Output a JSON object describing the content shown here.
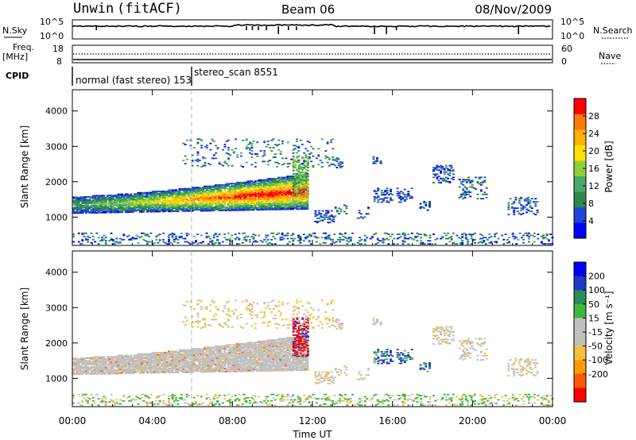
{
  "header": {
    "radar": "Unwin",
    "mode": "(fitACF)",
    "beam": "Beam 06",
    "date": "08/Nov/2009"
  },
  "top_panels": {
    "nsky_label": "N.Sky",
    "nsearch_label": "N.Search",
    "nsky_ticks": [
      "10^5",
      "10^0"
    ],
    "freq_label": "Freq.",
    "freq_unit": "[MHz]",
    "freq_ticks": [
      "18",
      "8"
    ],
    "nave_label": "Nave",
    "nave_ticks": [
      "60",
      "0"
    ],
    "cpid_label": "CPID",
    "cpid_entries": [
      {
        "name": "normal (fast stereo) 153",
        "start_hour": 0
      },
      {
        "name": "stereo_scan 8551",
        "start_hour": 6
      }
    ]
  },
  "colors": {
    "power": [
      "#0000ff",
      "#1e46d8",
      "#2f8a4a",
      "#4aa86a",
      "#8fcf3a",
      "#ffe000",
      "#ffb000",
      "#ff7a00",
      "#ff0000"
    ],
    "velocity": [
      "#ff0000",
      "#ff5a00",
      "#ff9a00",
      "#f2c040",
      "#c0c0c0",
      "#c0c0c0",
      "#3cb83c",
      "#2a8c5a",
      "#1e3cc8",
      "#0000ff"
    ],
    "noise_purple": "#9966cc"
  },
  "chart_data": [
    {
      "type": "heatmap",
      "ylabel": "Slant Range [km]",
      "colorbar_label": "Power [dB]",
      "colorbar_ticks": [
        4,
        8,
        12,
        16,
        20,
        24,
        28
      ],
      "colorbar_range": [
        0,
        32
      ],
      "ylim": [
        200,
        4600
      ],
      "yticks": [
        1000,
        2000,
        3000,
        4000
      ],
      "xlim": [
        0,
        24
      ],
      "features": [
        {
          "name": "main_band",
          "x_range": [
            0,
            11.7
          ],
          "range_km_start": [
            1150,
            1500
          ],
          "range_km_end": [
            1350,
            2150
          ],
          "peak_power_db": 30
        },
        {
          "name": "upper_patch",
          "x_range": [
            5.5,
            13
          ],
          "range_km": [
            2400,
            3200
          ]
        },
        {
          "name": "scattered_echoes",
          "x_range": [
            12,
            24
          ],
          "range_km": [
            900,
            2700
          ]
        },
        {
          "name": "near_range_echoes",
          "x_range": [
            0,
            24
          ],
          "range_km": [
            200,
            500
          ]
        }
      ]
    },
    {
      "type": "heatmap",
      "ylabel": "Slant Range [km]",
      "colorbar_label": "Velocity [m s⁻¹]",
      "colorbar_ticks": [
        200,
        100,
        50,
        15,
        -15,
        -50,
        -100,
        -200
      ],
      "ylim": [
        200,
        4600
      ],
      "yticks": [
        1000,
        2000,
        3000,
        4000
      ],
      "xlabel": "Time UT",
      "xticks": [
        "00:00",
        "04:00",
        "08:00",
        "12:00",
        "16:00",
        "20:00",
        "00:00"
      ],
      "xlim": [
        0,
        24
      ],
      "features": [
        {
          "name": "main_band",
          "x_range": [
            0,
            11.7
          ],
          "dominant_velocity": "ground_scatter",
          "velocity_ms": [
            -15,
            15
          ]
        },
        {
          "name": "red_streak",
          "x_range": [
            11,
            11.8
          ],
          "range_km": [
            1600,
            2700
          ],
          "velocity_ms": -200
        },
        {
          "name": "blue_echoes",
          "x_range": [
            15.5,
            19
          ],
          "range_km": [
            1300,
            1900
          ],
          "velocity_ms": 200
        }
      ]
    }
  ]
}
